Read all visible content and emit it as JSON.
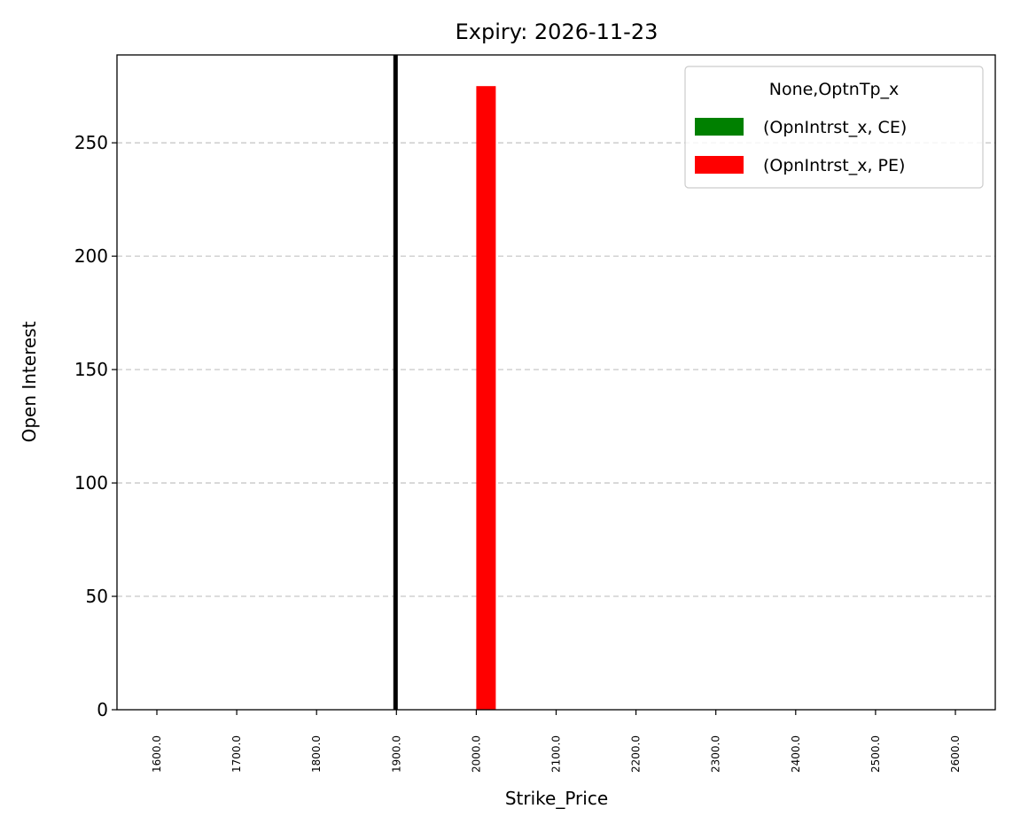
{
  "chart_data": {
    "type": "bar",
    "title": "Expiry: 2026-11-23",
    "xlabel": "Strike_Price",
    "ylabel": "Open Interest",
    "categories": [
      "1600.0",
      "1700.0",
      "1800.0",
      "1900.0",
      "2000.0",
      "2100.0",
      "2200.0",
      "2300.0",
      "2400.0",
      "2500.0",
      "2600.0"
    ],
    "series": [
      {
        "name": "(OpnIntrst_x, CE)",
        "color": "#008000",
        "values": [
          0,
          0,
          0,
          0,
          0,
          0,
          0,
          0,
          0,
          0,
          0
        ]
      },
      {
        "name": "(OpnIntrst_x, PE)",
        "color": "#ff0000",
        "values": [
          0,
          0,
          0,
          0,
          275,
          0,
          0,
          0,
          0,
          0,
          0
        ]
      }
    ],
    "yticks": [
      0,
      50,
      100,
      150,
      200,
      250
    ],
    "ylim": [
      0,
      288.75
    ],
    "grid": "y-dashed",
    "reference_line": {
      "x_category": "1900.0",
      "color": "#000000"
    },
    "legend": {
      "title": "None,OptnTp_x",
      "placement": "top-right"
    }
  }
}
